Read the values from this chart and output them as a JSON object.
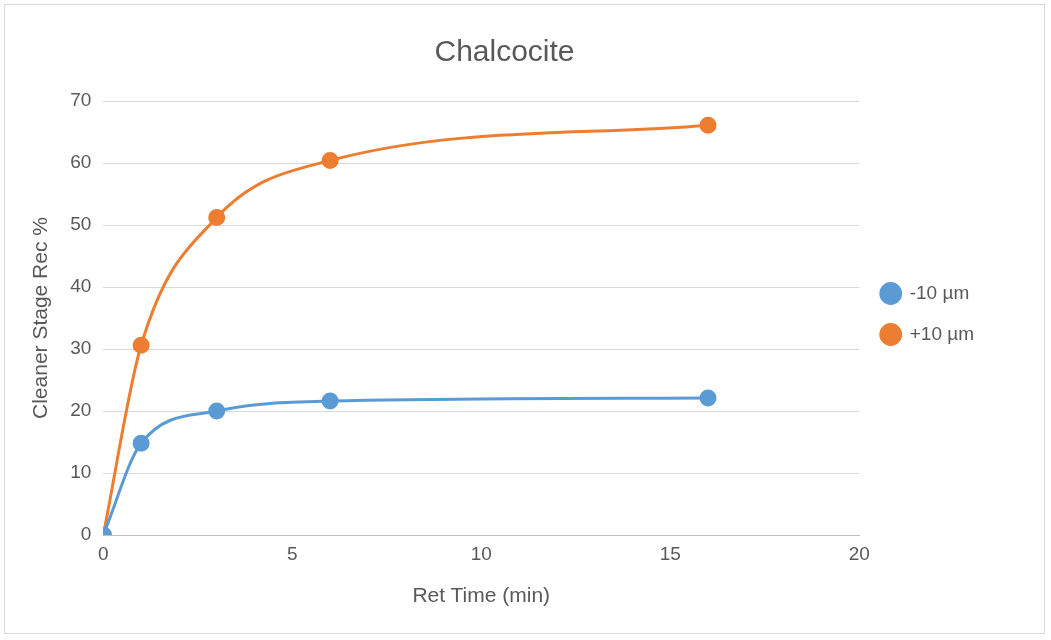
{
  "chart_data": {
    "type": "line",
    "title": "Chalcocite",
    "xlabel": "Ret Time (min)",
    "ylabel": "Cleaner Stage Rec %",
    "series": [
      {
        "name": "-10 µm",
        "color": "#5b9bd5",
        "x": [
          0,
          1,
          3,
          6,
          16
        ],
        "values": [
          0,
          14.8,
          20,
          21.6,
          22.1
        ]
      },
      {
        "name": "+10 µm",
        "color": "#ed7d31",
        "x": [
          0,
          1,
          3,
          6,
          16
        ],
        "values": [
          0,
          30.6,
          51.2,
          60.4,
          66.1
        ]
      }
    ],
    "xlim": [
      0,
      20
    ],
    "xticks": [
      0,
      5,
      10,
      15,
      20
    ],
    "ylim": [
      0,
      70
    ],
    "yticks": [
      0,
      10,
      20,
      30,
      40,
      50,
      60,
      70
    ],
    "grid": "y",
    "legend": "right",
    "marker": "circle",
    "line_style": "solid"
  }
}
